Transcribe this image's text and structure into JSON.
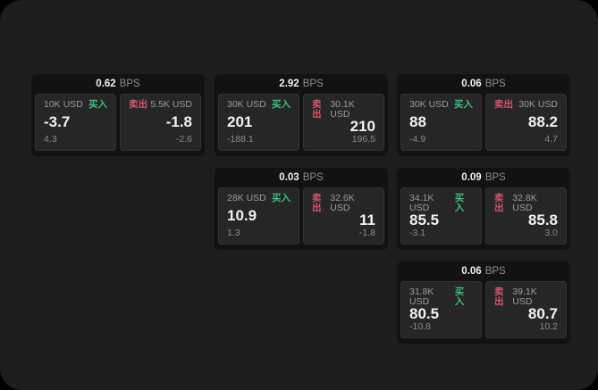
{
  "labels": {
    "buy": "买入",
    "sell": "卖出",
    "bps": "BPS"
  },
  "colors": {
    "buy": "#3dbd7d",
    "sell": "#d4566e",
    "window_bg": "#1d1d1d",
    "card_bg": "#121212",
    "panel_bg": "#262626"
  },
  "cards": [
    {
      "bps": "0.62",
      "col": 0,
      "row": 0,
      "buy": {
        "amount": "10K USD",
        "price": "-3.7",
        "delta": "4.3"
      },
      "sell": {
        "amount": "5.5K USD",
        "price": "-1.8",
        "delta": "-2.6"
      }
    },
    {
      "bps": "2.92",
      "col": 1,
      "row": 0,
      "buy": {
        "amount": "30K USD",
        "price": "201",
        "delta": "-188.1"
      },
      "sell": {
        "amount": "30.1K USD",
        "price": "210",
        "delta": "196.5"
      }
    },
    {
      "bps": "0.06",
      "col": 2,
      "row": 0,
      "buy": {
        "amount": "30K USD",
        "price": "88",
        "delta": "-4.9"
      },
      "sell": {
        "amount": "30K USD",
        "price": "88.2",
        "delta": "4.7"
      }
    },
    {
      "bps": "0.03",
      "col": 1,
      "row": 1,
      "buy": {
        "amount": "28K USD",
        "price": "10.9",
        "delta": "1.3"
      },
      "sell": {
        "amount": "32.6K USD",
        "price": "11",
        "delta": "-1.8"
      }
    },
    {
      "bps": "0.09",
      "col": 2,
      "row": 1,
      "buy": {
        "amount": "34.1K USD",
        "price": "85.5",
        "delta": "-3.1"
      },
      "sell": {
        "amount": "32.8K USD",
        "price": "85.8",
        "delta": "3.0"
      }
    },
    {
      "bps": "0.06",
      "col": 2,
      "row": 2,
      "buy": {
        "amount": "31.8K USD",
        "price": "80.5",
        "delta": "-10.8"
      },
      "sell": {
        "amount": "39.1K USD",
        "price": "80.7",
        "delta": "10.2"
      }
    }
  ]
}
